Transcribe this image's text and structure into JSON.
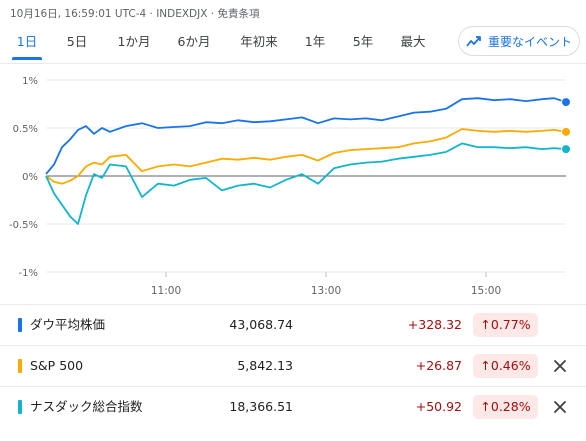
{
  "header": {
    "meta": "10月16日, 16:59:01 UTC-4 · INDEXDJX · 免責条項"
  },
  "tabs": [
    "1日",
    "5日",
    "1か月",
    "6か月",
    "年初来",
    "1年",
    "5年",
    "最大"
  ],
  "active_tab": 0,
  "events_button": {
    "label": "重要なイベント",
    "icon": "trending-up-icon"
  },
  "chart_data": {
    "type": "line",
    "ylim": [
      -1,
      1
    ],
    "yticks": [
      "1%",
      "0.5%",
      "0%",
      "-0.5%",
      "-1%"
    ],
    "ytick_values": [
      1,
      0.5,
      0,
      -0.5,
      -1
    ],
    "xticks": [
      "11:00",
      "13:00",
      "15:00"
    ],
    "xtick_hours": [
      11,
      13,
      15
    ],
    "xlim": [
      9.5,
      16
    ],
    "baseline": 0,
    "series": [
      {
        "name": "ダウ平均株価",
        "color": "#1a73e8",
        "x": [
          9.5,
          9.6,
          9.7,
          9.8,
          9.9,
          10.0,
          10.1,
          10.2,
          10.3,
          10.5,
          10.7,
          10.9,
          11.1,
          11.3,
          11.5,
          11.7,
          11.9,
          12.1,
          12.3,
          12.5,
          12.7,
          12.9,
          13.1,
          13.3,
          13.5,
          13.7,
          13.9,
          14.1,
          14.3,
          14.5,
          14.7,
          14.9,
          15.1,
          15.3,
          15.5,
          15.7,
          15.85,
          16.0
        ],
        "values": [
          0.02,
          0.12,
          0.3,
          0.38,
          0.48,
          0.52,
          0.44,
          0.5,
          0.46,
          0.52,
          0.55,
          0.5,
          0.51,
          0.52,
          0.56,
          0.55,
          0.58,
          0.56,
          0.57,
          0.59,
          0.61,
          0.55,
          0.6,
          0.59,
          0.6,
          0.58,
          0.62,
          0.66,
          0.67,
          0.7,
          0.8,
          0.81,
          0.79,
          0.8,
          0.78,
          0.8,
          0.81,
          0.77
        ]
      },
      {
        "name": "S&P 500",
        "color": "#f9ab00",
        "x": [
          9.5,
          9.6,
          9.7,
          9.8,
          9.9,
          10.0,
          10.1,
          10.2,
          10.3,
          10.5,
          10.7,
          10.9,
          11.1,
          11.3,
          11.5,
          11.7,
          11.9,
          12.1,
          12.3,
          12.5,
          12.7,
          12.9,
          13.1,
          13.3,
          13.5,
          13.7,
          13.9,
          14.1,
          14.3,
          14.5,
          14.7,
          14.9,
          15.1,
          15.3,
          15.5,
          15.7,
          15.85,
          16.0
        ],
        "values": [
          0.0,
          -0.06,
          -0.08,
          -0.05,
          0.0,
          0.1,
          0.14,
          0.12,
          0.2,
          0.22,
          0.05,
          0.1,
          0.12,
          0.1,
          0.14,
          0.18,
          0.17,
          0.19,
          0.17,
          0.2,
          0.22,
          0.16,
          0.24,
          0.27,
          0.28,
          0.29,
          0.3,
          0.34,
          0.36,
          0.4,
          0.49,
          0.47,
          0.46,
          0.47,
          0.46,
          0.47,
          0.48,
          0.46
        ]
      },
      {
        "name": "ナスダック総合指数",
        "color": "#12b5cb",
        "x": [
          9.5,
          9.6,
          9.7,
          9.8,
          9.9,
          10.0,
          10.1,
          10.2,
          10.3,
          10.5,
          10.7,
          10.9,
          11.1,
          11.3,
          11.5,
          11.7,
          11.9,
          12.1,
          12.3,
          12.5,
          12.7,
          12.9,
          13.1,
          13.3,
          13.5,
          13.7,
          13.9,
          14.1,
          14.3,
          14.5,
          14.7,
          14.9,
          15.1,
          15.3,
          15.5,
          15.7,
          15.85,
          16.0
        ],
        "values": [
          0.0,
          -0.18,
          -0.3,
          -0.42,
          -0.5,
          -0.2,
          0.02,
          -0.02,
          0.12,
          0.1,
          -0.22,
          -0.08,
          -0.1,
          -0.04,
          -0.02,
          -0.15,
          -0.1,
          -0.08,
          -0.12,
          -0.04,
          0.02,
          -0.08,
          0.08,
          0.12,
          0.14,
          0.15,
          0.18,
          0.2,
          0.22,
          0.25,
          0.34,
          0.3,
          0.3,
          0.29,
          0.3,
          0.28,
          0.29,
          0.28
        ]
      }
    ]
  },
  "quotes": [
    {
      "name": "ダウ平均株価",
      "color": "#1a73e8",
      "value": "43,068.74",
      "change": "+328.32",
      "pct": "0.77%",
      "closable": false
    },
    {
      "name": "S&P 500",
      "color": "#f9ab00",
      "value": "5,842.13",
      "change": "+26.87",
      "pct": "0.46%",
      "closable": true
    },
    {
      "name": "ナスダック総合指数",
      "color": "#12b5cb",
      "value": "18,366.51",
      "change": "+50.92",
      "pct": "0.28%",
      "closable": true
    }
  ]
}
